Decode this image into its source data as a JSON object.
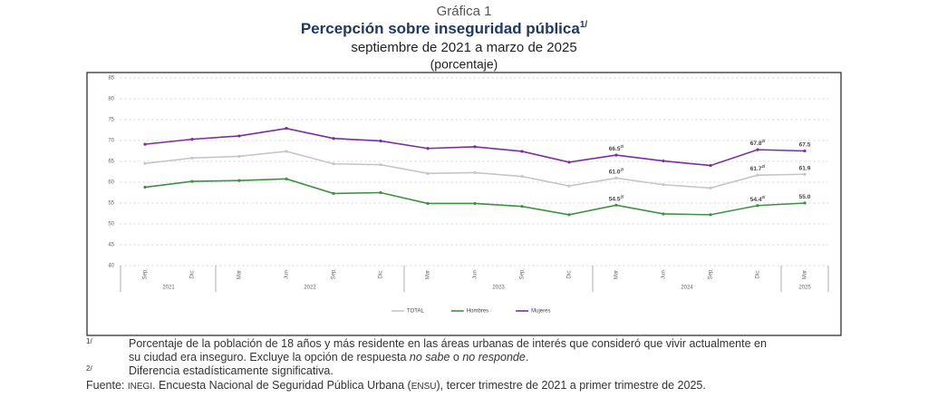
{
  "header": {
    "figure_label": "Gráfica 1",
    "subtitle": "septiembre de 2021 a marzo de 2025",
    "unit": "(porcentaje)"
  },
  "chart_data": {
    "type": "line",
    "title": "Percepción sobre inseguridad pública",
    "title_note": "1/",
    "groups": [
      {
        "label": "2021",
        "categories": [
          "Sep",
          "Dic"
        ]
      },
      {
        "label": "2022",
        "categories": [
          "Mar",
          "Jun",
          "Sep",
          "Dic"
        ]
      },
      {
        "label": "2023",
        "categories": [
          "Mar",
          "Jun",
          "Sep",
          "Dic"
        ]
      },
      {
        "label": "2024",
        "categories": [
          "Mar",
          "Jun",
          "Sep",
          "Dic"
        ]
      },
      {
        "label": "2025",
        "categories": [
          "Mar"
        ]
      }
    ],
    "ylim": [
      40,
      85
    ],
    "yticks": [
      40,
      45,
      50,
      55,
      60,
      65,
      70,
      75,
      80,
      85
    ],
    "grid": true,
    "legend": "bottom",
    "series": [
      {
        "name": "TOTAL",
        "color": "#c6c6c6",
        "values": [
          64.5,
          65.8,
          66.2,
          67.4,
          64.4,
          64.2,
          62.1,
          62.3,
          61.4,
          59.1,
          61.0,
          59.4,
          58.6,
          61.7,
          61.9
        ],
        "value_labels": [
          null,
          null,
          null,
          null,
          null,
          null,
          null,
          null,
          null,
          null,
          "61.0",
          null,
          null,
          "61.7",
          "61.9"
        ],
        "value_label_notes": [
          null,
          null,
          null,
          null,
          null,
          null,
          null,
          null,
          null,
          null,
          "2/",
          null,
          null,
          "2/",
          null
        ]
      },
      {
        "name": "Hombres",
        "color": "#3f9142",
        "values": [
          58.8,
          60.2,
          60.4,
          60.8,
          57.3,
          57.5,
          54.9,
          54.9,
          54.2,
          52.2,
          54.5,
          52.4,
          52.2,
          54.4,
          55.0
        ],
        "value_labels": [
          null,
          null,
          null,
          null,
          null,
          null,
          null,
          null,
          null,
          null,
          "54.5",
          null,
          null,
          "54.4",
          "55.0"
        ],
        "value_label_notes": [
          null,
          null,
          null,
          null,
          null,
          null,
          null,
          null,
          null,
          null,
          "2/",
          null,
          null,
          "2/",
          null
        ]
      },
      {
        "name": "Mujeres",
        "color": "#7b2e9e",
        "values": [
          69.1,
          70.3,
          71.1,
          72.9,
          70.5,
          69.9,
          68.1,
          68.5,
          67.4,
          64.8,
          66.5,
          65.1,
          64.0,
          67.8,
          67.5
        ],
        "value_labels": [
          null,
          null,
          null,
          null,
          null,
          null,
          null,
          null,
          null,
          null,
          "66.5",
          null,
          null,
          "67.8",
          "67.5"
        ],
        "value_label_notes": [
          null,
          null,
          null,
          null,
          null,
          null,
          null,
          null,
          null,
          null,
          "2/",
          null,
          null,
          "2/",
          null
        ]
      }
    ]
  },
  "footnotes": [
    {
      "mark": "1/",
      "lines": [
        [
          "Porcentaje de la población de 18 años y más residente en las áreas urbanas de interés que consideró que vivir actualmente en"
        ],
        [
          "su ciudad era inseguro. Excluye la opción de respuesta ",
          {
            "text": "no sabe",
            "italic": true
          },
          " o ",
          {
            "text": "no responde",
            "italic": true
          },
          "."
        ]
      ]
    },
    {
      "mark": "2/",
      "lines": [
        [
          "Diferencia estadísticamente significativa."
        ]
      ]
    }
  ],
  "source": [
    "Fuente: ",
    {
      "text": "INEGI",
      "small_caps": true
    },
    ". Encuesta Nacional de Seguridad Pública Urbana (",
    {
      "text": "ENSU",
      "small_caps": true
    },
    "), tercer trimestre de 2021 a primer trimestre de 2025."
  ]
}
